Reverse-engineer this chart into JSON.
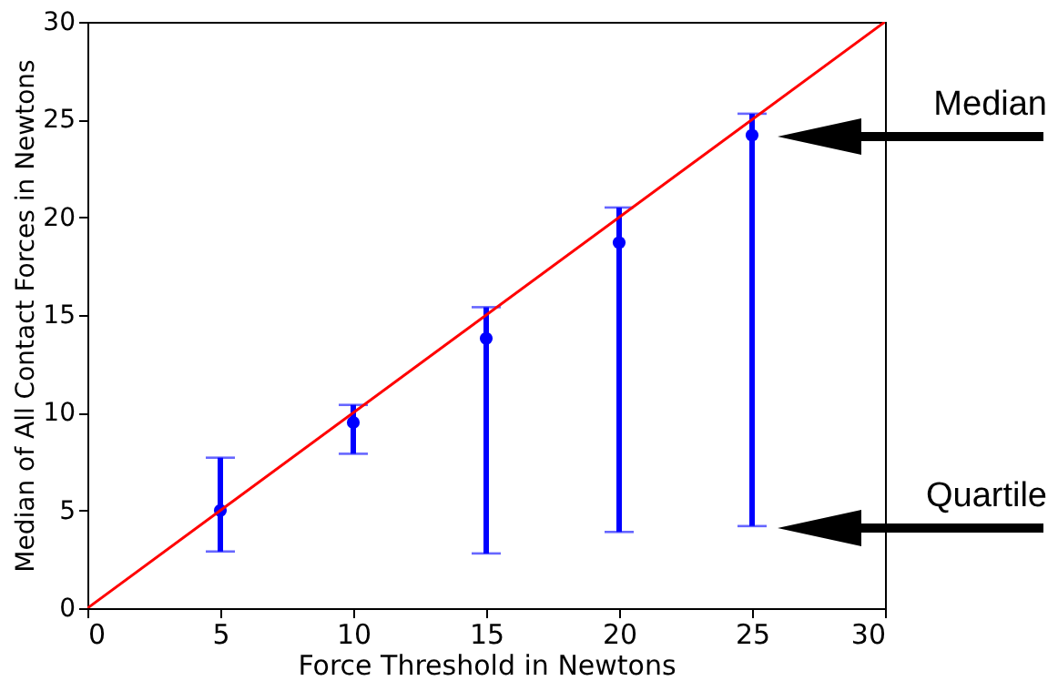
{
  "chart_data": {
    "type": "scatter",
    "xlabel": "Force Threshold in Newtons",
    "ylabel": "Median of All Contact Forces in Newtons",
    "xlim": [
      0,
      30
    ],
    "xticks": [
      0,
      5,
      10,
      15,
      20,
      25,
      30
    ],
    "ylim": [
      0,
      30
    ],
    "yticks": [
      0,
      5,
      10,
      15,
      20,
      25,
      30
    ],
    "line_style": "solid",
    "annotations": [
      "Median",
      "Quartile"
    ],
    "series": [
      {
        "color": "#0000ff",
        "marker": "circle",
        "x": [
          5,
          10,
          15,
          20,
          25
        ],
        "values": [
          5.0,
          9.5,
          13.8,
          18.7,
          24.2
        ],
        "errors": [
          [
            2.9,
            7.7
          ],
          [
            7.9,
            10.4
          ],
          [
            2.8,
            15.4
          ],
          [
            3.9,
            20.5
          ],
          [
            4.2,
            25.3
          ]
        ]
      },
      {
        "type": "line",
        "color": "#ff0000",
        "x": [
          0,
          30
        ],
        "values": [
          0,
          30
        ]
      }
    ]
  }
}
